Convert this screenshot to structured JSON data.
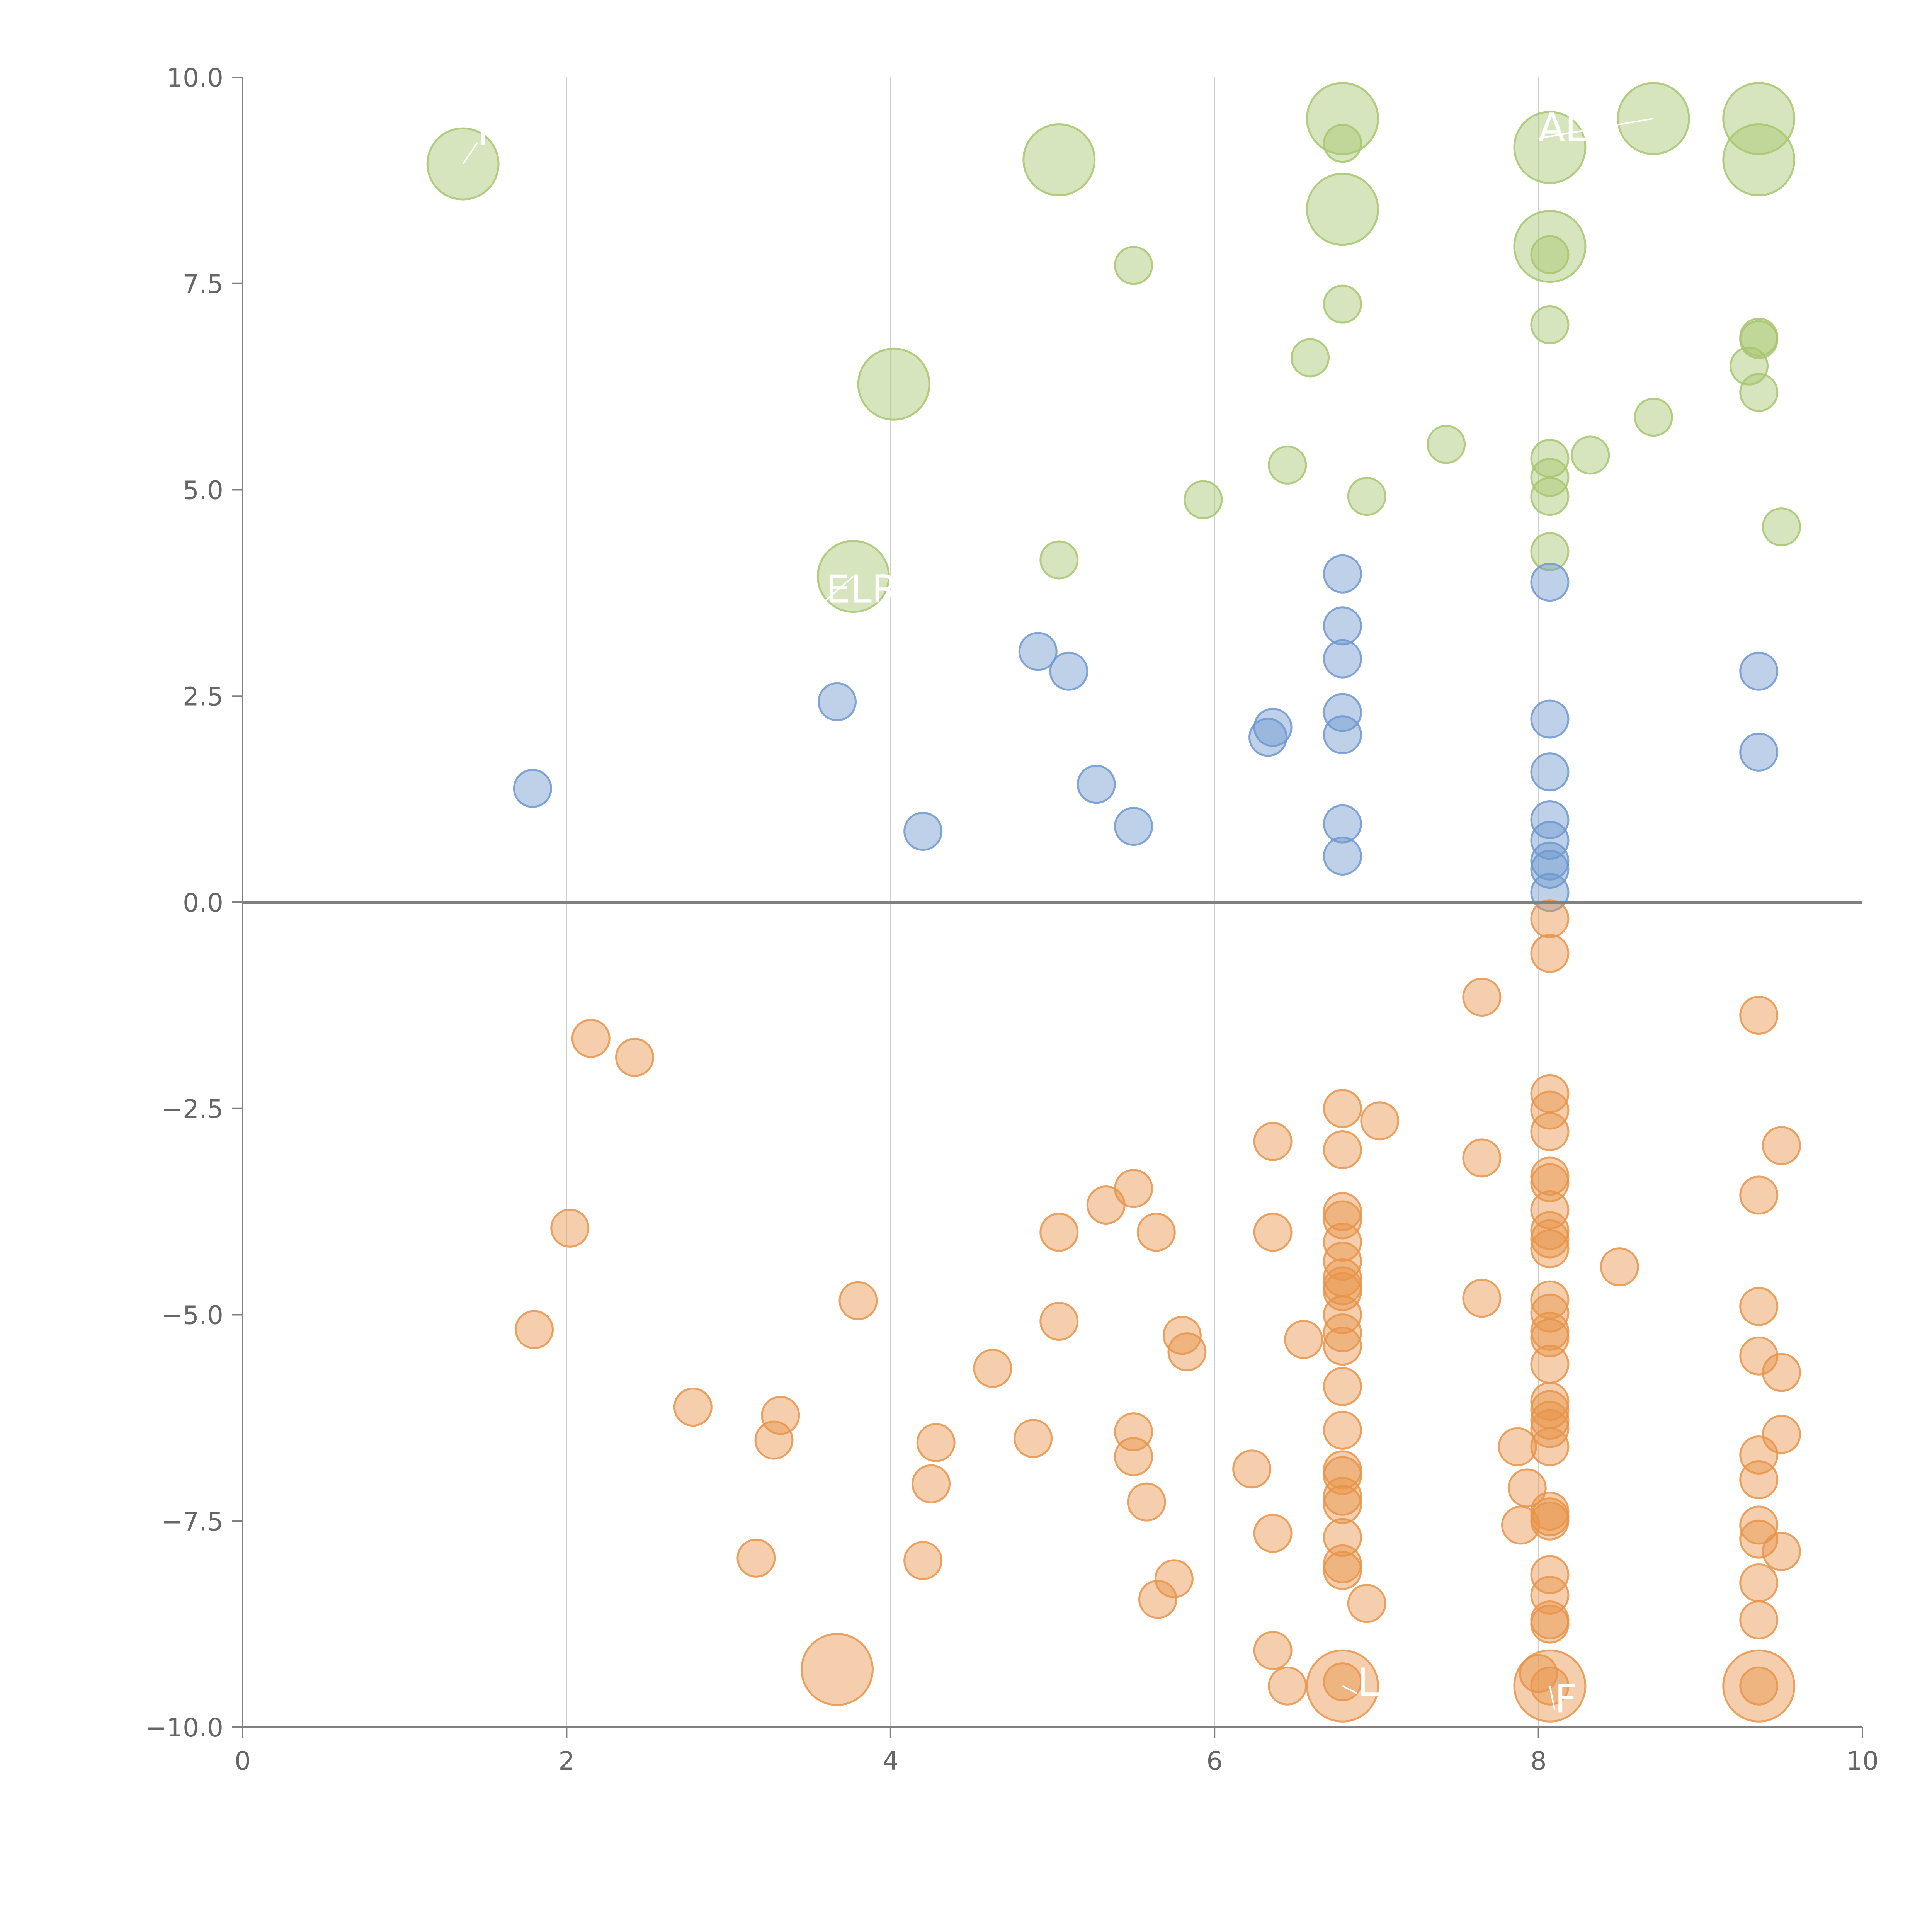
{
  "chart_data": {
    "type": "scatter",
    "title": "",
    "xlabel": "",
    "ylabel": "",
    "xlim": [
      0,
      10
    ],
    "ylim": [
      -10,
      10
    ],
    "x_ticks": [
      0,
      2,
      4,
      6,
      8,
      10
    ],
    "x_tick_labels": [
      "0",
      "2",
      "4",
      "6",
      "8",
      "10"
    ],
    "y_ticks": [
      10,
      7.5,
      5,
      2.5,
      0,
      -2.5,
      -5,
      -7.5,
      -10
    ],
    "y_tick_labels": [
      "10.0",
      "7.5",
      "5.0",
      "2.5",
      "0.0",
      "−2.5",
      "−5.0",
      "−7.5",
      "−10.0"
    ],
    "x_grid": true,
    "y_grid": false,
    "zero_line": true,
    "legend": "none",
    "colors": {
      "green": "#a7c56f",
      "blue": "#6e98cf",
      "orange": "#e8944a"
    },
    "series": [
      {
        "color": "#a7c56f",
        "points": [
          [
            1.36,
            8.95,
            "L",
            "MM",
            [
              1.45,
              9.35
            ]
          ],
          [
            5.04,
            9.0,
            "L",
            "",
            null
          ],
          [
            6.79,
            9.5,
            "L",
            "",
            null
          ],
          [
            6.79,
            9.2,
            "S",
            "",
            null
          ],
          [
            6.79,
            8.4,
            "L",
            "",
            null
          ],
          [
            8.07,
            9.15,
            "L",
            "",
            null
          ],
          [
            8.71,
            9.5,
            "L",
            "ALL",
            [
              8.0,
              9.4
            ]
          ],
          [
            9.36,
            9.5,
            "L",
            "",
            null
          ],
          [
            9.36,
            9.0,
            "L",
            "",
            null
          ],
          [
            8.07,
            7.95,
            "L",
            "",
            null
          ],
          [
            8.07,
            7.85,
            "S",
            "",
            null
          ],
          [
            5.5,
            7.72,
            "S",
            "",
            null
          ],
          [
            6.79,
            7.25,
            "S",
            "",
            null
          ],
          [
            8.07,
            7.0,
            "S",
            "",
            null
          ],
          [
            9.36,
            6.85,
            "S",
            "",
            null
          ],
          [
            9.36,
            6.82,
            "S",
            "",
            null
          ],
          [
            9.3,
            6.5,
            "S",
            "",
            null
          ],
          [
            6.59,
            6.6,
            "S",
            "",
            null
          ],
          [
            4.02,
            6.28,
            "L",
            "",
            null
          ],
          [
            9.36,
            6.18,
            "S",
            "",
            null
          ],
          [
            8.71,
            5.88,
            "S",
            "",
            null
          ],
          [
            7.43,
            5.55,
            "S",
            "",
            null
          ],
          [
            8.32,
            5.42,
            "S",
            "",
            null
          ],
          [
            8.07,
            5.38,
            "S",
            "",
            null
          ],
          [
            6.45,
            5.3,
            "S",
            "",
            null
          ],
          [
            8.07,
            5.15,
            "S",
            "",
            null
          ],
          [
            8.07,
            4.92,
            "S",
            "",
            null
          ],
          [
            6.94,
            4.92,
            "S",
            "",
            null
          ],
          [
            5.93,
            4.88,
            "S",
            "",
            null
          ],
          [
            9.5,
            4.55,
            "S",
            "",
            null
          ],
          [
            8.07,
            4.25,
            "S",
            "",
            null
          ],
          [
            5.04,
            4.15,
            "S",
            "",
            null
          ],
          [
            3.77,
            3.95,
            "L",
            "ELR",
            [
              3.6,
              3.8
            ]
          ]
        ]
      },
      {
        "color": "#6e98cf",
        "points": [
          [
            6.79,
            3.98
          ],
          [
            8.07,
            3.88
          ],
          [
            6.79,
            3.35
          ],
          [
            4.91,
            3.04
          ],
          [
            6.79,
            2.95
          ],
          [
            5.1,
            2.8
          ],
          [
            9.36,
            2.8
          ],
          [
            3.67,
            2.43
          ],
          [
            6.79,
            2.3
          ],
          [
            8.07,
            2.22
          ],
          [
            6.36,
            2.12
          ],
          [
            6.33,
            2.0
          ],
          [
            6.79,
            2.03
          ],
          [
            9.36,
            1.82
          ],
          [
            8.07,
            1.58
          ],
          [
            5.27,
            1.43
          ],
          [
            1.79,
            1.38
          ],
          [
            8.07,
            1.0
          ],
          [
            6.79,
            0.95
          ],
          [
            5.5,
            0.92
          ],
          [
            4.2,
            0.86
          ],
          [
            8.07,
            0.75
          ],
          [
            6.79,
            0.56
          ],
          [
            8.07,
            0.5
          ],
          [
            8.07,
            0.4
          ],
          [
            8.07,
            0.12
          ]
        ]
      },
      {
        "color": "#e8944a",
        "points": [
          [
            8.07,
            -0.2,
            "S",
            "",
            null
          ],
          [
            8.07,
            -0.62,
            "S",
            "",
            null
          ],
          [
            7.65,
            -1.15,
            "S",
            "",
            null
          ],
          [
            9.36,
            -1.37,
            "S",
            "",
            null
          ],
          [
            2.15,
            -1.65,
            "S",
            "",
            null
          ],
          [
            2.42,
            -1.88,
            "S",
            "",
            null
          ],
          [
            8.07,
            -2.32,
            "S",
            "",
            null
          ],
          [
            6.79,
            -2.5,
            "S",
            "",
            null
          ],
          [
            8.07,
            -2.52,
            "S",
            "",
            null
          ],
          [
            7.02,
            -2.65,
            "S",
            "",
            null
          ],
          [
            8.07,
            -2.78,
            "S",
            "",
            null
          ],
          [
            6.36,
            -2.9,
            "S",
            "",
            null
          ],
          [
            9.5,
            -2.95,
            "S",
            "",
            null
          ],
          [
            6.79,
            -3.0,
            "S",
            "",
            null
          ],
          [
            7.65,
            -3.1,
            "S",
            "",
            null
          ],
          [
            8.07,
            -3.32,
            "S",
            "",
            null
          ],
          [
            8.07,
            -3.4,
            "S",
            "",
            null
          ],
          [
            5.5,
            -3.47,
            "S",
            "",
            null
          ],
          [
            9.36,
            -3.55,
            "S",
            "",
            null
          ],
          [
            5.33,
            -3.67,
            "S",
            "",
            null
          ],
          [
            6.79,
            -3.75,
            "S",
            "",
            null
          ],
          [
            8.07,
            -3.73,
            "S",
            "",
            null
          ],
          [
            6.79,
            -3.85,
            "S",
            "",
            null
          ],
          [
            2.02,
            -3.95,
            "S",
            "",
            null
          ],
          [
            5.04,
            -4.0,
            "S",
            "",
            null
          ],
          [
            5.64,
            -4.0,
            "S",
            "",
            null
          ],
          [
            6.36,
            -4.0,
            "S",
            "",
            null
          ],
          [
            8.07,
            -3.98,
            "S",
            "",
            null
          ],
          [
            8.07,
            -4.08,
            "S",
            "",
            null
          ],
          [
            6.79,
            -4.12,
            "S",
            "",
            null
          ],
          [
            8.07,
            -4.2,
            "S",
            "",
            null
          ],
          [
            6.79,
            -4.35,
            "S",
            "",
            null
          ],
          [
            8.5,
            -4.42,
            "S",
            "",
            null
          ],
          [
            6.79,
            -4.55,
            "S",
            "",
            null
          ],
          [
            6.79,
            -4.65,
            "S",
            "",
            null
          ],
          [
            6.79,
            -4.72,
            "S",
            "",
            null
          ],
          [
            7.65,
            -4.8,
            "S",
            "",
            null
          ],
          [
            3.8,
            -4.83,
            "S",
            "",
            null
          ],
          [
            8.07,
            -4.82,
            "S",
            "",
            null
          ],
          [
            9.36,
            -4.9,
            "S",
            "",
            null
          ],
          [
            8.07,
            -4.98,
            "S",
            "",
            null
          ],
          [
            6.79,
            -5.0,
            "S",
            "",
            null
          ],
          [
            5.04,
            -5.08,
            "S",
            "",
            null
          ],
          [
            1.8,
            -5.18,
            "S",
            "",
            null
          ],
          [
            8.07,
            -5.2,
            "S",
            "",
            null
          ],
          [
            6.79,
            -5.22,
            "S",
            "",
            null
          ],
          [
            8.07,
            -5.28,
            "S",
            "",
            null
          ],
          [
            5.8,
            -5.25,
            "S",
            "",
            null
          ],
          [
            6.55,
            -5.3,
            "S",
            "",
            null
          ],
          [
            6.79,
            -5.38,
            "S",
            "",
            null
          ],
          [
            5.83,
            -5.45,
            "S",
            "",
            null
          ],
          [
            9.36,
            -5.5,
            "S",
            "",
            null
          ],
          [
            8.07,
            -5.6,
            "S",
            "",
            null
          ],
          [
            4.63,
            -5.65,
            "S",
            "",
            null
          ],
          [
            9.5,
            -5.7,
            "S",
            "",
            null
          ],
          [
            6.79,
            -5.87,
            "S",
            "",
            null
          ],
          [
            8.07,
            -6.05,
            "S",
            "",
            null
          ],
          [
            2.78,
            -6.12,
            "S",
            "",
            null
          ],
          [
            8.07,
            -6.15,
            "S",
            "",
            null
          ],
          [
            3.32,
            -6.22,
            "S",
            "",
            null
          ],
          [
            8.07,
            -6.28,
            "S",
            "",
            null
          ],
          [
            8.07,
            -6.38,
            "S",
            "",
            null
          ],
          [
            6.79,
            -6.4,
            "S",
            "",
            null
          ],
          [
            5.5,
            -6.42,
            "S",
            "",
            null
          ],
          [
            9.5,
            -6.45,
            "S",
            "",
            null
          ],
          [
            4.88,
            -6.5,
            "S",
            "",
            null
          ],
          [
            3.28,
            -6.52,
            "S",
            "",
            null
          ],
          [
            4.28,
            -6.55,
            "S",
            "",
            null
          ],
          [
            7.87,
            -6.6,
            "S",
            "",
            null
          ],
          [
            8.07,
            -6.6,
            "S",
            "",
            null
          ],
          [
            9.36,
            -6.7,
            "S",
            "",
            null
          ],
          [
            5.5,
            -6.72,
            "S",
            "",
            null
          ],
          [
            6.23,
            -6.87,
            "S",
            "",
            null
          ],
          [
            6.79,
            -6.88,
            "S",
            "",
            null
          ],
          [
            6.79,
            -6.95,
            "S",
            "",
            null
          ],
          [
            9.36,
            -7.0,
            "S",
            "",
            null
          ],
          [
            4.25,
            -7.05,
            "S",
            "",
            null
          ],
          [
            7.93,
            -7.1,
            "S",
            "",
            null
          ],
          [
            6.79,
            -7.2,
            "S",
            "",
            null
          ],
          [
            5.58,
            -7.27,
            "S",
            "",
            null
          ],
          [
            6.79,
            -7.3,
            "S",
            "",
            null
          ],
          [
            8.07,
            -7.38,
            "S",
            "",
            null
          ],
          [
            8.07,
            -7.45,
            "S",
            "",
            null
          ],
          [
            8.07,
            -7.5,
            "S",
            "",
            null
          ],
          [
            9.36,
            -7.55,
            "S",
            "",
            null
          ],
          [
            7.89,
            -7.55,
            "S",
            "",
            null
          ],
          [
            6.36,
            -7.65,
            "S",
            "",
            null
          ],
          [
            6.79,
            -7.7,
            "S",
            "",
            null
          ],
          [
            9.36,
            -7.72,
            "S",
            "",
            null
          ],
          [
            9.5,
            -7.87,
            "S",
            "",
            null
          ],
          [
            3.17,
            -7.95,
            "S",
            "",
            null
          ],
          [
            4.2,
            -7.98,
            "S",
            "",
            null
          ],
          [
            6.79,
            -8.02,
            "S",
            "",
            null
          ],
          [
            6.79,
            -8.1,
            "S",
            "",
            null
          ],
          [
            8.07,
            -8.15,
            "S",
            "",
            null
          ],
          [
            5.75,
            -8.2,
            "S",
            "",
            null
          ],
          [
            9.36,
            -8.25,
            "S",
            "",
            null
          ],
          [
            8.07,
            -8.4,
            "S",
            "",
            null
          ],
          [
            5.65,
            -8.45,
            "S",
            "",
            null
          ],
          [
            6.94,
            -8.5,
            "S",
            "",
            null
          ],
          [
            8.07,
            -8.7,
            "S",
            "",
            null
          ],
          [
            8.07,
            -8.75,
            "S",
            "",
            null
          ],
          [
            9.36,
            -8.7,
            "S",
            "",
            null
          ],
          [
            6.36,
            -9.07,
            "S",
            "",
            null
          ],
          [
            3.67,
            -9.3,
            "L",
            "",
            null
          ],
          [
            6.79,
            -9.45,
            "S",
            "",
            null
          ],
          [
            6.45,
            -9.5,
            "S",
            "",
            null
          ],
          [
            8.0,
            -9.35,
            "S",
            "",
            null
          ],
          [
            8.07,
            -9.5,
            "S",
            "",
            null
          ],
          [
            9.36,
            -9.5,
            "S",
            "",
            null
          ],
          [
            6.79,
            -9.5,
            "L",
            "L",
            [
              6.88,
              -9.45
            ]
          ],
          [
            8.07,
            -9.5,
            "L",
            "F",
            [
              8.1,
              -9.65
            ]
          ],
          [
            9.36,
            -9.5,
            "L",
            "",
            null
          ]
        ]
      }
    ]
  }
}
